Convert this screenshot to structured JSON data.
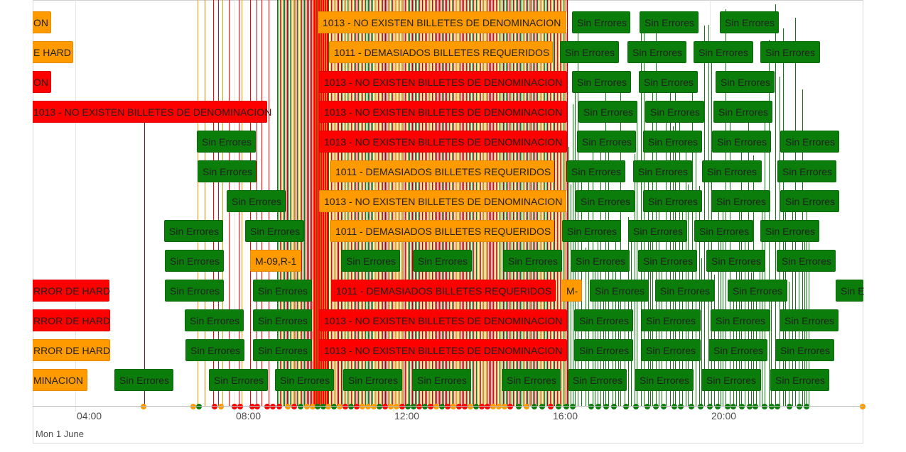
{
  "colors": {
    "green": "#0b7d0b",
    "red": "#ff0000",
    "orange": "#ff9a00",
    "green_border": "#0a6a0a",
    "red_border": "#e00000",
    "orange_border": "#e88a00"
  },
  "axis": {
    "ticks": [
      "04:00",
      "08:00",
      "12:00",
      "16:00",
      "20:00"
    ],
    "date_label": "Mon 1 June"
  },
  "rows": [
    {
      "items": [
        {
          "label": "ON",
          "status": "orange"
        },
        {
          "label": "1013 - NO EXISTEN BILLETES DE DENOMINACION",
          "status": "orange"
        },
        {
          "label": "Sin Errores",
          "status": "green"
        },
        {
          "label": "Sin Errores",
          "status": "green"
        },
        {
          "label": "Sin Errores",
          "status": "green"
        }
      ]
    },
    {
      "items": [
        {
          "label": "E HARD",
          "status": "orange"
        },
        {
          "label": "1011 - DEMASIADOS BILLETES REQUERIDOS",
          "status": "orange"
        },
        {
          "label": "Sin Errores",
          "status": "green"
        },
        {
          "label": "Sin Errores",
          "status": "green"
        },
        {
          "label": "Sin Errores",
          "status": "green"
        },
        {
          "label": "Sin Errores",
          "status": "green"
        }
      ]
    },
    {
      "items": [
        {
          "label": "ON",
          "status": "red"
        },
        {
          "label": "1013 - NO EXISTEN BILLETES DE DENOMINACION",
          "status": "red"
        },
        {
          "label": "Sin Errores",
          "status": "green"
        },
        {
          "label": "Sin Errores",
          "status": "green"
        },
        {
          "label": "Sin Errores",
          "status": "green"
        }
      ]
    },
    {
      "items": [
        {
          "label": "1013 - NO EXISTEN BILLETES DE DENOMINACION",
          "status": "red"
        },
        {
          "label": "1013 - NO EXISTEN BILLETES DE DENOMINACION",
          "status": "red"
        },
        {
          "label": "Sin Errores",
          "status": "green"
        },
        {
          "label": "Sin Errores",
          "status": "green"
        },
        {
          "label": "Sin Errores",
          "status": "green"
        }
      ]
    },
    {
      "items": [
        {
          "label": "Sin Errores",
          "status": "green"
        },
        {
          "label": "1013 - NO EXISTEN BILLETES DE DENOMINACION",
          "status": "red"
        },
        {
          "label": "Sin Errores",
          "status": "green"
        },
        {
          "label": "Sin Errores",
          "status": "green"
        },
        {
          "label": "Sin Errores",
          "status": "green"
        },
        {
          "label": "Sin Errores",
          "status": "green"
        }
      ]
    },
    {
      "items": [
        {
          "label": "Sin Errores",
          "status": "green"
        },
        {
          "label": "1011 - DEMASIADOS BILLETES REQUERIDOS",
          "status": "orange"
        },
        {
          "label": "Sin Errores",
          "status": "green"
        },
        {
          "label": "Sin Errores",
          "status": "green"
        },
        {
          "label": "Sin Errores",
          "status": "green"
        },
        {
          "label": "Sin Errores",
          "status": "green"
        }
      ]
    },
    {
      "items": [
        {
          "label": "Sin Errores",
          "status": "green"
        },
        {
          "label": "1013 - NO EXISTEN BILLETES DE DENOMINACION",
          "status": "orange"
        },
        {
          "label": "Sin Errores",
          "status": "green"
        },
        {
          "label": "Sin Errores",
          "status": "green"
        },
        {
          "label": "Sin Errores",
          "status": "green"
        },
        {
          "label": "Sin Errores",
          "status": "green"
        }
      ]
    },
    {
      "items": [
        {
          "label": "Sin Errores",
          "status": "green"
        },
        {
          "label": "Sin Errores",
          "status": "green"
        },
        {
          "label": "1011 - DEMASIADOS BILLETES REQUERIDOS",
          "status": "orange"
        },
        {
          "label": "Sin Errores",
          "status": "green"
        },
        {
          "label": "Sin Errores",
          "status": "green"
        },
        {
          "label": "Sin Errores",
          "status": "green"
        },
        {
          "label": "Sin Errores",
          "status": "green"
        }
      ]
    },
    {
      "items": [
        {
          "label": "Sin Errores",
          "status": "green"
        },
        {
          "label": "M-09,R-1",
          "status": "orange"
        },
        {
          "label": "Sin Errores",
          "status": "green"
        },
        {
          "label": "Sin Errores",
          "status": "green"
        },
        {
          "label": "Sin Errores",
          "status": "green"
        },
        {
          "label": "Sin Errores",
          "status": "green"
        },
        {
          "label": "Sin Errores",
          "status": "green"
        },
        {
          "label": "Sin Errores",
          "status": "green"
        },
        {
          "label": "Sin Errores",
          "status": "green"
        }
      ]
    },
    {
      "items": [
        {
          "label": "RROR DE HARD",
          "status": "red"
        },
        {
          "label": "Sin Errores",
          "status": "green"
        },
        {
          "label": "Sin Errores",
          "status": "green"
        },
        {
          "label": "1011 - DEMASIADOS BILLETES REQUERIDOS",
          "status": "red"
        },
        {
          "label": "M-",
          "status": "orange"
        },
        {
          "label": "Sin Errores",
          "status": "green"
        },
        {
          "label": "Sin Errores",
          "status": "green"
        },
        {
          "label": "Sin Errores",
          "status": "green"
        },
        {
          "label": "Sin E",
          "status": "green"
        }
      ]
    },
    {
      "items": [
        {
          "label": "RROR DE HARD",
          "status": "red"
        },
        {
          "label": "Sin Errores",
          "status": "green"
        },
        {
          "label": "Sin Errores",
          "status": "green"
        },
        {
          "label": "1013 - NO EXISTEN BILLETES DE DENOMINACION",
          "status": "red"
        },
        {
          "label": "Sin Errores",
          "status": "green"
        },
        {
          "label": "Sin Errores",
          "status": "green"
        },
        {
          "label": "Sin Errores",
          "status": "green"
        },
        {
          "label": "Sin Errores",
          "status": "green"
        }
      ]
    },
    {
      "items": [
        {
          "label": "RROR DE HARD",
          "status": "orange"
        },
        {
          "label": "Sin Errores",
          "status": "green"
        },
        {
          "label": "Sin Errores",
          "status": "green"
        },
        {
          "label": "1013 - NO EXISTEN BILLETES DE DENOMINACION",
          "status": "red"
        },
        {
          "label": "Sin Errores",
          "status": "green"
        },
        {
          "label": "Sin Errores",
          "status": "green"
        },
        {
          "label": "Sin Errores",
          "status": "green"
        },
        {
          "label": "Sin Errores",
          "status": "green"
        }
      ]
    },
    {
      "items": [
        {
          "label": "MINACION",
          "status": "orange"
        },
        {
          "label": "Sin Errores",
          "status": "green"
        },
        {
          "label": "Sin Errores",
          "status": "green"
        },
        {
          "label": "Sin Errores",
          "status": "green"
        },
        {
          "label": "Sin Errores",
          "status": "green"
        },
        {
          "label": "Sin Errores",
          "status": "green"
        },
        {
          "label": "Sin Errores",
          "status": "green"
        },
        {
          "label": "Sin Errores",
          "status": "green"
        },
        {
          "label": "Sin Errores",
          "status": "green"
        },
        {
          "label": "Sin Errores",
          "status": "green"
        },
        {
          "label": "Sin Errores",
          "status": "green"
        }
      ]
    }
  ]
}
